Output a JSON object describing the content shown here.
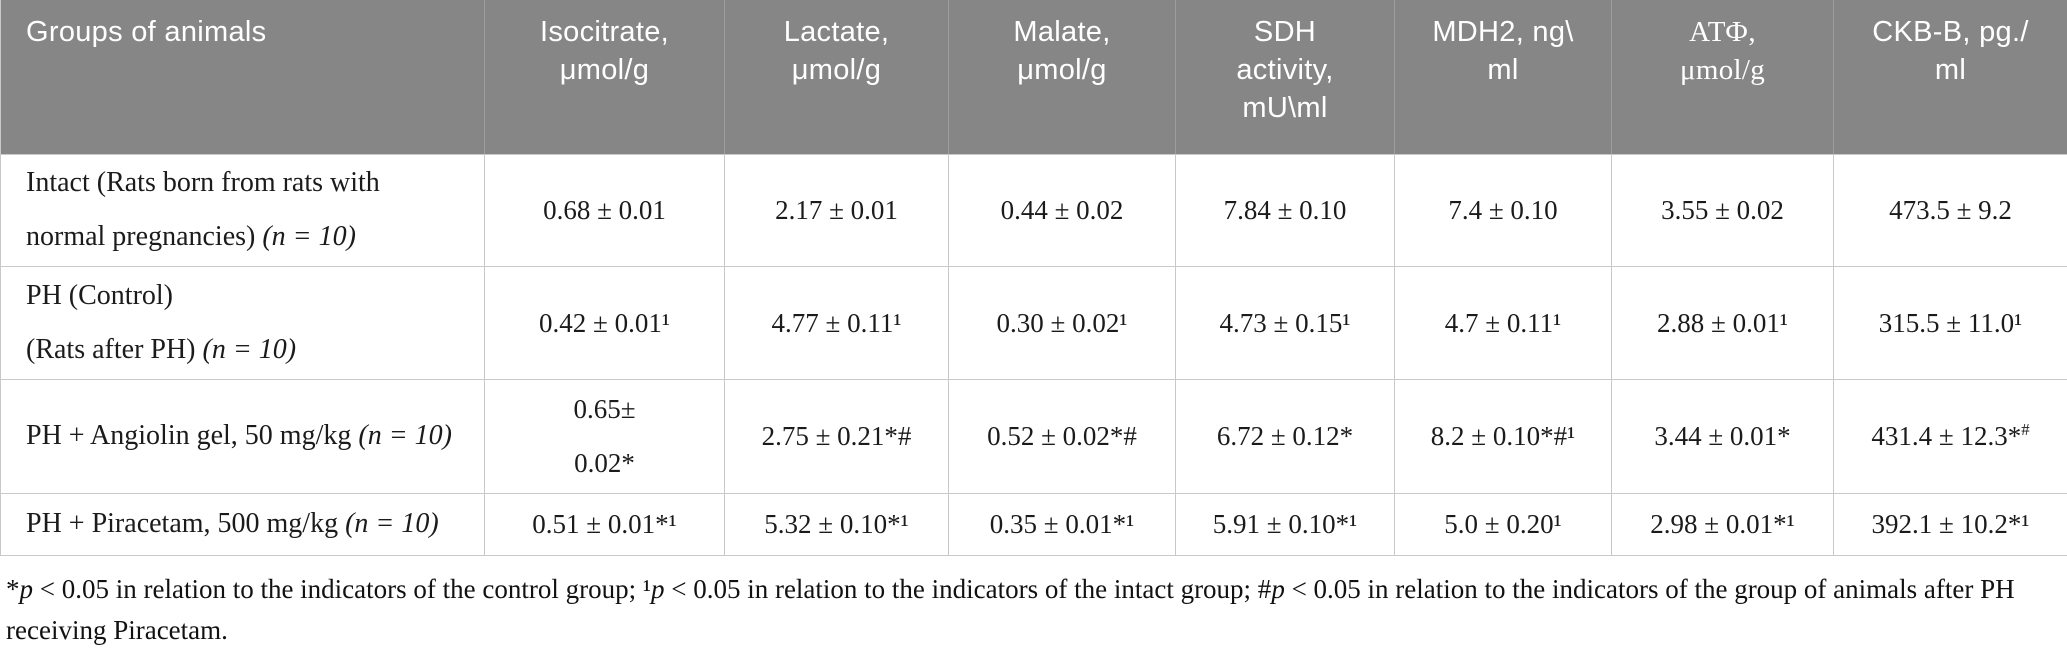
{
  "table": {
    "columns": [
      {
        "key": "groups",
        "label": "Groups of animals"
      },
      {
        "key": "isocitrate",
        "label": "Isocitrate,\nμmol/g"
      },
      {
        "key": "lactate",
        "label": "Lactate,\nμmol/g"
      },
      {
        "key": "malate",
        "label": "Malate,\nμmol/g"
      },
      {
        "key": "sdh",
        "label": "SDH\nactivity,\nmU\\ml"
      },
      {
        "key": "mdh2",
        "label": "MDH2, ng\\\nml"
      },
      {
        "key": "atf",
        "label": "АТФ,\nμmol/g",
        "serif": true
      },
      {
        "key": "ckbb",
        "label": "CKB-B, pg./\nml"
      }
    ],
    "rows": [
      {
        "label": "Intact (Rats born from rats with normal pregnancies)",
        "label_italic": "(n = 10)",
        "cells": [
          "0.68 ± 0.01",
          "2.17 ± 0.01",
          "0.44 ± 0.02",
          "7.84 ± 0.10",
          "7.4 ± 0.10",
          "3.55 ± 0.02",
          "473.5 ± 9.2"
        ]
      },
      {
        "label": "PH (Control)\n(Rats after PH)",
        "label_italic": "(n = 10)",
        "cells": [
          "0.42 ± 0.01¹",
          "4.77 ± 0.11¹",
          "0.30 ± 0.02¹",
          "4.73 ± 0.15¹",
          "4.7 ± 0.11¹",
          "2.88 ± 0.01¹",
          "315.5 ± 11.0¹"
        ]
      },
      {
        "label": "PH + Angiolin gel, 50 mg/kg",
        "label_italic": "(n = 10)",
        "cells": [
          "0.65±\n0.02*",
          "2.75 ± 0.21*#",
          "0.52 ± 0.02*#",
          "6.72 ± 0.12*",
          "8.2 ± 0.10*#¹",
          "3.44 ± 0.01*",
          "431.4 ± 12.3*{#}"
        ]
      },
      {
        "label": "PH + Piracetam, 500 mg/kg",
        "label_italic": "(n = 10)",
        "cells": [
          "0.51 ± 0.01*¹",
          "5.32 ± 0.10*¹",
          "0.35 ± 0.01*¹",
          "5.91 ± 0.10*¹",
          "5.0 ± 0.20¹",
          "2.98 ± 0.01*¹",
          "392.1 ± 10.2*¹"
        ]
      }
    ]
  },
  "footnote": {
    "parts": [
      {
        "t": "*"
      },
      {
        "t": "p",
        "i": true
      },
      {
        "t": " < 0.05 in relation to the indicators of the control group; "
      },
      {
        "t": "¹"
      },
      {
        "t": "p",
        "i": true
      },
      {
        "t": " < 0.05 in relation to the indicators of the intact group; #"
      },
      {
        "t": "p",
        "i": true
      },
      {
        "t": " < 0.05 in relation to the indicators of the group of animals after PH receiving Piracetam."
      }
    ]
  },
  "colors": {
    "header_bg": "#868686",
    "header_text": "#ffffff",
    "border": "#c9c9c9",
    "body_text": "#1b1b1b"
  }
}
